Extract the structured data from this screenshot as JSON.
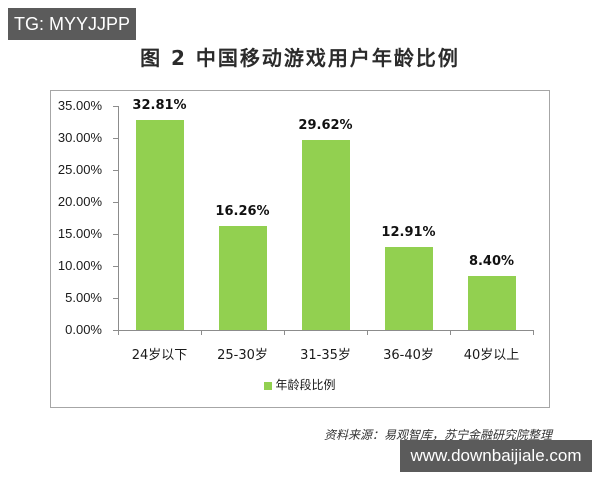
{
  "badge": {
    "text": "TG: MYYJJPP"
  },
  "watermark": {
    "text": "www.downbaijiale.com"
  },
  "source": {
    "text": "资料来源：易观智库，苏宁金融研究院整理"
  },
  "chart_data": {
    "type": "bar",
    "title": "图 2  中国移动游戏用户年龄比例",
    "xlabel": "",
    "ylabel": "",
    "ylim": [
      0,
      35
    ],
    "yticks": [
      "0.00%",
      "5.00%",
      "10.00%",
      "15.00%",
      "20.00%",
      "25.00%",
      "30.00%",
      "35.00%"
    ],
    "categories": [
      "24岁以下",
      "25-30岁",
      "31-35岁",
      "36-40岁",
      "40岁以上"
    ],
    "series": [
      {
        "name": "年龄段比例",
        "values": [
          32.81,
          16.26,
          29.62,
          12.91,
          8.4
        ],
        "labels": [
          "32.81%",
          "16.26%",
          "29.62%",
          "12.91%",
          "8.40%"
        ],
        "color": "#92d050"
      }
    ],
    "legend_position": "bottom",
    "grid": false
  }
}
